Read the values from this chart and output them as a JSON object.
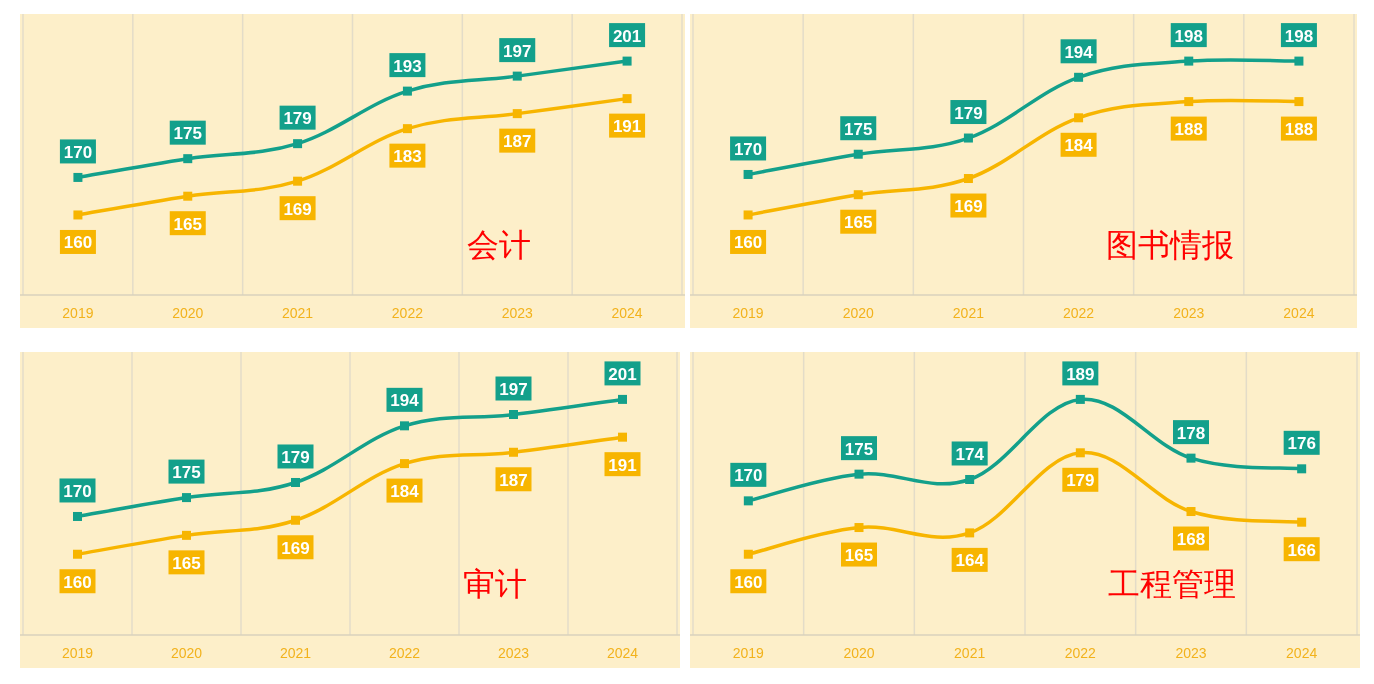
{
  "chart_data": [
    {
      "type": "line",
      "title": "会计",
      "categories": [
        "2019",
        "2020",
        "2021",
        "2022",
        "2023",
        "2024"
      ],
      "marker": "square",
      "grid": "x",
      "data_labels": true,
      "series": [
        {
          "color": "#13a08b",
          "values": [
            170,
            175,
            179,
            193,
            197,
            201
          ]
        },
        {
          "color": "#f7b500",
          "values": [
            160,
            165,
            169,
            183,
            187,
            191
          ]
        }
      ]
    },
    {
      "type": "line",
      "title": "图书情报",
      "categories": [
        "2019",
        "2020",
        "2021",
        "2022",
        "2023",
        "2024"
      ],
      "marker": "square",
      "grid": "x",
      "data_labels": true,
      "series": [
        {
          "color": "#13a08b",
          "values": [
            170,
            175,
            179,
            194,
            198,
            198
          ]
        },
        {
          "color": "#f7b500",
          "values": [
            160,
            165,
            169,
            184,
            188,
            188
          ]
        }
      ]
    },
    {
      "type": "line",
      "title": "审计",
      "categories": [
        "2019",
        "2020",
        "2021",
        "2022",
        "2023",
        "2024"
      ],
      "marker": "square",
      "grid": "x",
      "data_labels": true,
      "series": [
        {
          "color": "#13a08b",
          "values": [
            170,
            175,
            179,
            194,
            197,
            201
          ]
        },
        {
          "color": "#f7b500",
          "values": [
            160,
            165,
            169,
            184,
            187,
            191
          ]
        }
      ]
    },
    {
      "type": "line",
      "title": "工程管理",
      "categories": [
        "2019",
        "2020",
        "2021",
        "2022",
        "2023",
        "2024"
      ],
      "marker": "square",
      "grid": "x",
      "data_labels": true,
      "series": [
        {
          "color": "#13a08b",
          "values": [
            170,
            175,
            174,
            189,
            178,
            176
          ]
        },
        {
          "color": "#f7b500",
          "values": [
            160,
            165,
            164,
            179,
            168,
            166
          ]
        }
      ]
    }
  ]
}
